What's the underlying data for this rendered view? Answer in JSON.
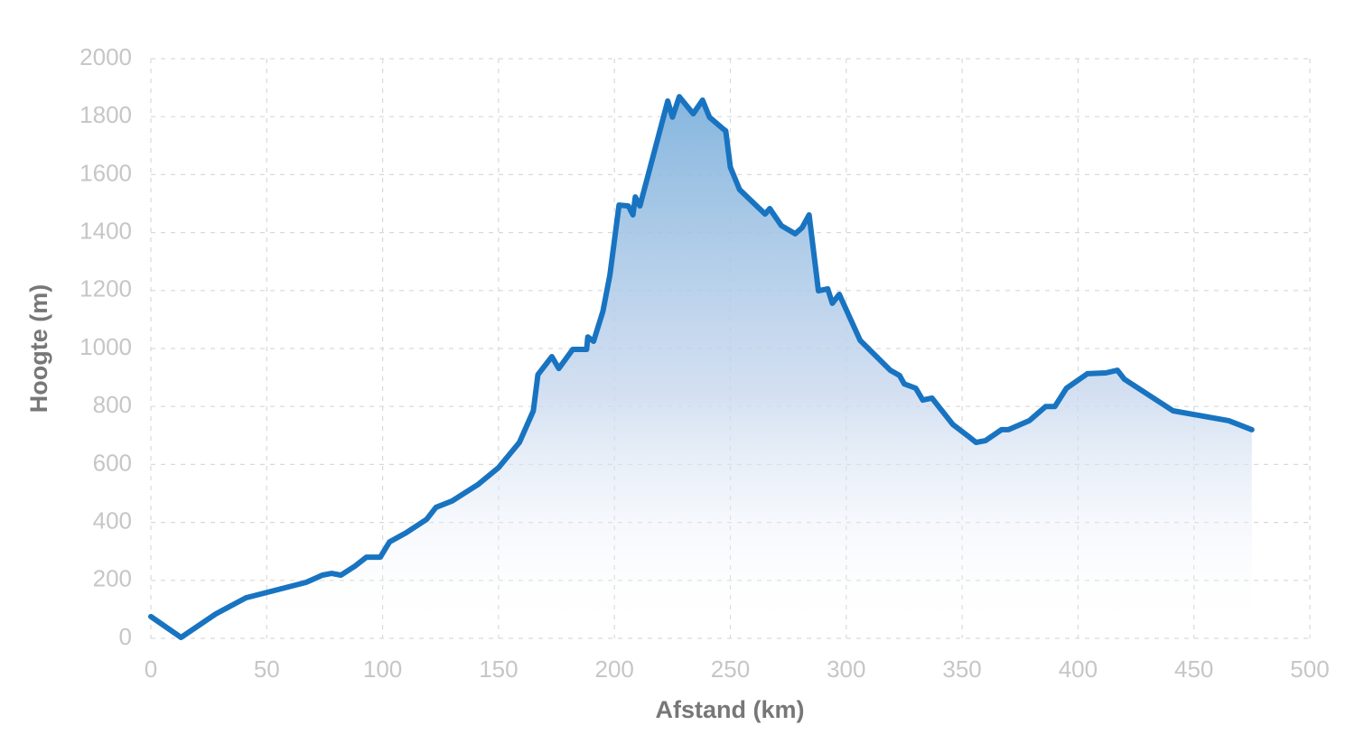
{
  "chart_data": {
    "type": "area",
    "x_label": "Afstand (km)",
    "y_label": "Hoogte (m)",
    "color": "#1874c1",
    "grid": true,
    "xlim": [
      0,
      500
    ],
    "ylim": [
      0,
      2000
    ],
    "xticks": [
      0,
      50,
      100,
      150,
      200,
      250,
      300,
      350,
      400,
      450,
      500
    ],
    "yticks": [
      0,
      200,
      400,
      600,
      800,
      1000,
      1200,
      1400,
      1600,
      1800,
      2000
    ],
    "x": [
      0,
      13,
      28,
      41,
      67,
      74,
      78,
      82,
      88,
      93,
      99,
      103,
      110,
      119,
      123,
      130,
      141,
      150,
      159,
      165,
      167,
      173,
      176,
      182,
      188,
      188.5,
      191,
      195,
      198,
      202,
      206,
      208,
      209,
      211,
      217,
      223,
      225,
      228,
      234,
      238,
      241,
      247,
      248,
      250,
      254,
      265,
      267,
      272,
      278,
      281,
      284,
      288,
      292,
      294,
      297,
      306,
      319,
      323,
      325,
      330,
      333,
      337,
      346,
      353,
      356,
      360,
      367,
      370,
      379,
      386,
      390,
      395,
      404,
      412,
      417,
      420,
      441,
      465,
      475
    ],
    "values": [
      75,
      3,
      84,
      140,
      193,
      218,
      224,
      218,
      249,
      280,
      280,
      333,
      364,
      411,
      452,
      474,
      530,
      589,
      676,
      785,
      910,
      972,
      931,
      997,
      997,
      1040,
      1025,
      1128,
      1252,
      1495,
      1492,
      1461,
      1523,
      1492,
      1673,
      1854,
      1798,
      1869,
      1810,
      1857,
      1798,
      1757,
      1751,
      1626,
      1548,
      1464,
      1483,
      1424,
      1396,
      1417,
      1461,
      1199,
      1206,
      1156,
      1187,
      1028,
      925,
      907,
      878,
      863,
      822,
      829,
      738,
      695,
      676,
      682,
      720,
      720,
      751,
      800,
      800,
      863,
      913,
      916,
      925,
      894,
      785,
      751,
      720
    ]
  }
}
